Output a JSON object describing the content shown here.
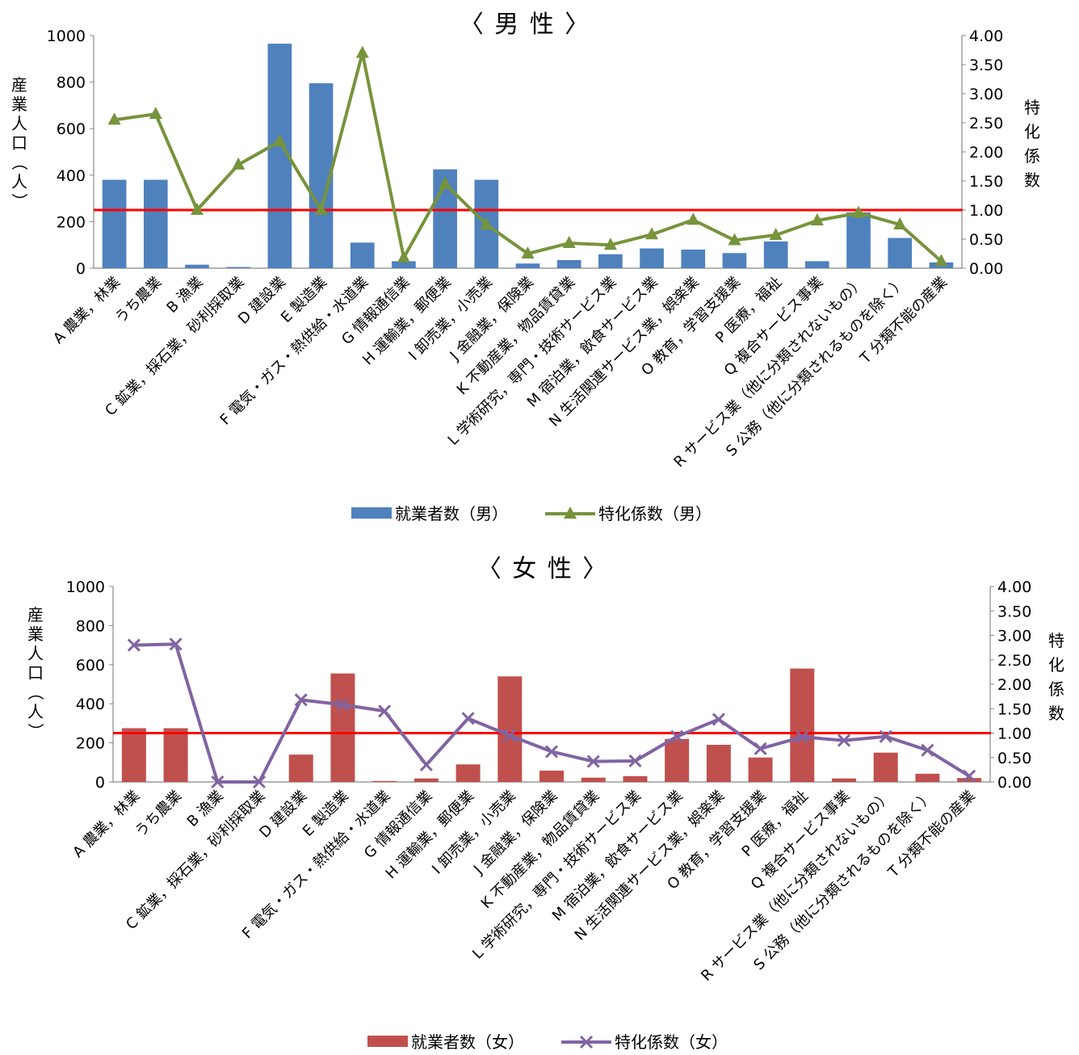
{
  "chart_data": [
    {
      "type": "bar",
      "title": "〈 男 性 〉",
      "ylabel": "産業人口（人）",
      "y2label": "特化係数",
      "ylim": [
        0,
        1000
      ],
      "yticks": [
        "0",
        "200",
        "400",
        "600",
        "800",
        "1000"
      ],
      "y2lim": [
        0,
        4
      ],
      "y2ticks": [
        "0.00",
        "0.50",
        "1.00",
        "1.50",
        "2.00",
        "2.50",
        "3.00",
        "3.50",
        "4.00"
      ],
      "reference_value": 1.0,
      "categories": [
        "A 農業，林業",
        "うち農業",
        "B 漁業",
        "C 鉱業，採石業，砂利採取業",
        "D 建設業",
        "E 製造業",
        "F 電気・ガス・熱供給・水道業",
        "G 情報通信業",
        "H 運輸業，郵便業",
        "I 卸売業，小売業",
        "J 金融業，保険業",
        "K 不動産業，物品賃貸業",
        "L 学術研究，専門・技術サービス業",
        "M 宿泊業，飲食サービス業",
        "N 生活関連サービス業，娯楽業",
        "O 教育，学習支援業",
        "P 医療，福祉",
        "Q 複合サービス事業",
        "R サービス業（他に分類されないもの）",
        "S 公務（他に分類されるものを除く）",
        "T 分類不能の産業"
      ],
      "series": [
        {
          "name": "就業者数（男）",
          "kind": "bar",
          "axis": "left",
          "color": "#4f81bd",
          "values": [
            380,
            380,
            15,
            5,
            965,
            795,
            110,
            30,
            425,
            380,
            20,
            35,
            60,
            85,
            80,
            65,
            115,
            30,
            240,
            130,
            25
          ]
        },
        {
          "name": "特化係数（男）",
          "kind": "line",
          "axis": "right",
          "color": "#77933c",
          "marker": "triangle",
          "values": [
            2.55,
            2.65,
            1.0,
            1.78,
            2.18,
            1.0,
            3.7,
            0.18,
            1.45,
            0.75,
            0.25,
            0.43,
            0.4,
            0.58,
            0.83,
            0.48,
            0.57,
            0.82,
            0.95,
            0.75,
            0.12
          ]
        }
      ],
      "legend_position": "bottom"
    },
    {
      "type": "bar",
      "title": "〈 女 性 〉",
      "ylabel": "産業人口（人）",
      "y2label": "特化係数",
      "ylim": [
        0,
        1000
      ],
      "yticks": [
        "0",
        "200",
        "400",
        "600",
        "800",
        "1000"
      ],
      "y2lim": [
        0,
        4
      ],
      "y2ticks": [
        "0.00",
        "0.50",
        "1.00",
        "1.50",
        "2.00",
        "2.50",
        "3.00",
        "3.50",
        "4.00"
      ],
      "reference_value": 1.0,
      "categories": [
        "A 農業，林業",
        "うち農業",
        "B 漁業",
        "C 鉱業，採石業，砂利採取業",
        "D 建設業",
        "E 製造業",
        "F 電気・ガス・熱供給・水道業",
        "G 情報通信業",
        "H 運輸業，郵便業",
        "I 卸売業，小売業",
        "J 金融業，保険業",
        "K 不動産業，物品賃貸業",
        "L 学術研究，専門・技術サービス業",
        "M 宿泊業，飲食サービス業",
        "N 生活関連サービス業，娯楽業",
        "O 教育，学習支援業",
        "P 医療，福祉",
        "Q 複合サービス事業",
        "R サービス業（他に分類されないもの）",
        "S 公務（他に分類されるものを除く）",
        "T 分類不能の産業"
      ],
      "series": [
        {
          "name": "就業者数（女）",
          "kind": "bar",
          "axis": "left",
          "color": "#c0504d",
          "values": [
            275,
            275,
            0,
            0,
            140,
            555,
            5,
            18,
            90,
            540,
            58,
            22,
            30,
            220,
            190,
            125,
            580,
            18,
            150,
            42,
            20
          ]
        },
        {
          "name": "特化係数（女）",
          "kind": "line",
          "axis": "right",
          "color": "#8064a2",
          "marker": "x",
          "values": [
            2.8,
            2.82,
            0.0,
            0.0,
            1.68,
            1.58,
            1.45,
            0.35,
            1.3,
            0.95,
            0.62,
            0.42,
            0.43,
            0.93,
            1.28,
            0.68,
            0.92,
            0.85,
            0.93,
            0.65,
            0.12
          ]
        }
      ],
      "legend_position": "bottom"
    }
  ]
}
